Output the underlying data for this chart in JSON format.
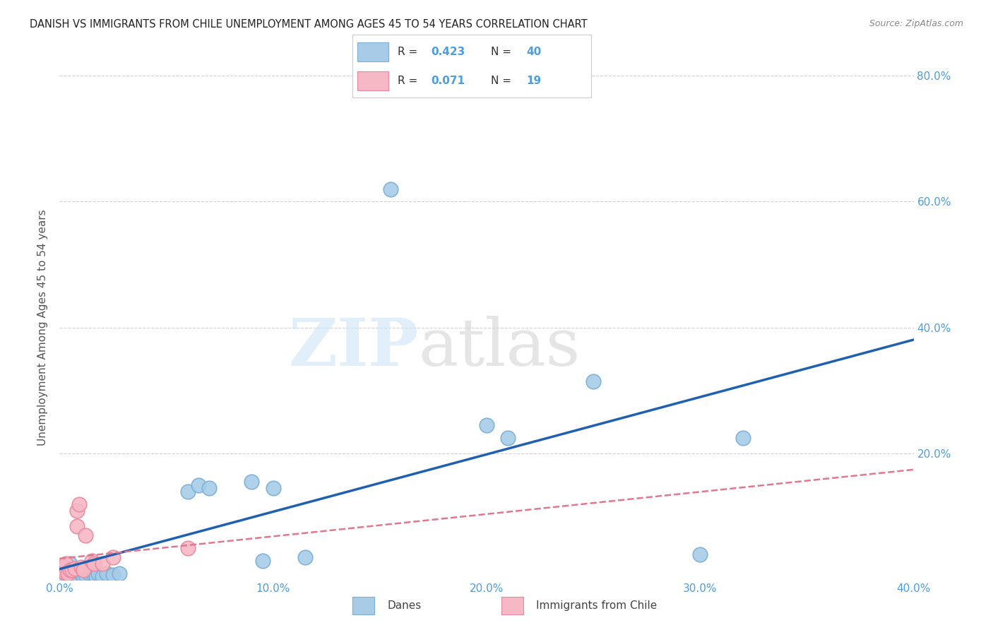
{
  "title": "DANISH VS IMMIGRANTS FROM CHILE UNEMPLOYMENT AMONG AGES 45 TO 54 YEARS CORRELATION CHART",
  "source": "Source: ZipAtlas.com",
  "ylabel": "Unemployment Among Ages 45 to 54 years",
  "xlim": [
    0.0,
    0.4
  ],
  "ylim": [
    0.0,
    0.8
  ],
  "xticks": [
    0.0,
    0.1,
    0.2,
    0.3,
    0.4
  ],
  "yticks": [
    0.0,
    0.2,
    0.4,
    0.6,
    0.8
  ],
  "xtick_labels": [
    "0.0%",
    "10.0%",
    "20.0%",
    "30.0%",
    "40.0%"
  ],
  "ytick_labels": [
    "",
    "20.0%",
    "40.0%",
    "60.0%",
    "80.0%"
  ],
  "danes_color": "#a8cce8",
  "danes_edge_color": "#7aafd4",
  "chile_color": "#f5b8c4",
  "chile_edge_color": "#e888a0",
  "line_danes_color": "#2060b0",
  "line_chile_color": "#e07890",
  "danes_R": "0.423",
  "danes_N": "40",
  "chile_R": "0.071",
  "chile_N": "19",
  "legend_text_color": "#4d9de0",
  "danes_x": [
    0.001,
    0.002,
    0.002,
    0.003,
    0.003,
    0.004,
    0.004,
    0.005,
    0.005,
    0.006,
    0.006,
    0.007,
    0.008,
    0.009,
    0.01,
    0.011,
    0.012,
    0.013,
    0.014,
    0.015,
    0.016,
    0.017,
    0.018,
    0.02,
    0.022,
    0.025,
    0.028,
    0.06,
    0.065,
    0.07,
    0.09,
    0.095,
    0.1,
    0.115,
    0.155,
    0.2,
    0.21,
    0.25,
    0.3,
    0.32
  ],
  "danes_y": [
    0.008,
    0.015,
    0.02,
    0.01,
    0.022,
    0.008,
    0.018,
    0.012,
    0.025,
    0.006,
    0.015,
    0.01,
    0.008,
    0.015,
    0.01,
    0.005,
    0.008,
    0.012,
    0.01,
    0.015,
    0.008,
    0.005,
    0.01,
    0.005,
    0.01,
    0.008,
    0.01,
    0.14,
    0.15,
    0.145,
    0.155,
    0.03,
    0.145,
    0.035,
    0.62,
    0.245,
    0.225,
    0.315,
    0.04,
    0.225
  ],
  "chile_x": [
    0.001,
    0.002,
    0.003,
    0.003,
    0.004,
    0.005,
    0.006,
    0.007,
    0.008,
    0.008,
    0.009,
    0.01,
    0.011,
    0.012,
    0.015,
    0.016,
    0.02,
    0.025,
    0.06
  ],
  "chile_y": [
    0.015,
    0.02,
    0.025,
    0.01,
    0.01,
    0.015,
    0.015,
    0.018,
    0.085,
    0.11,
    0.12,
    0.02,
    0.015,
    0.07,
    0.03,
    0.025,
    0.025,
    0.035,
    0.05
  ]
}
